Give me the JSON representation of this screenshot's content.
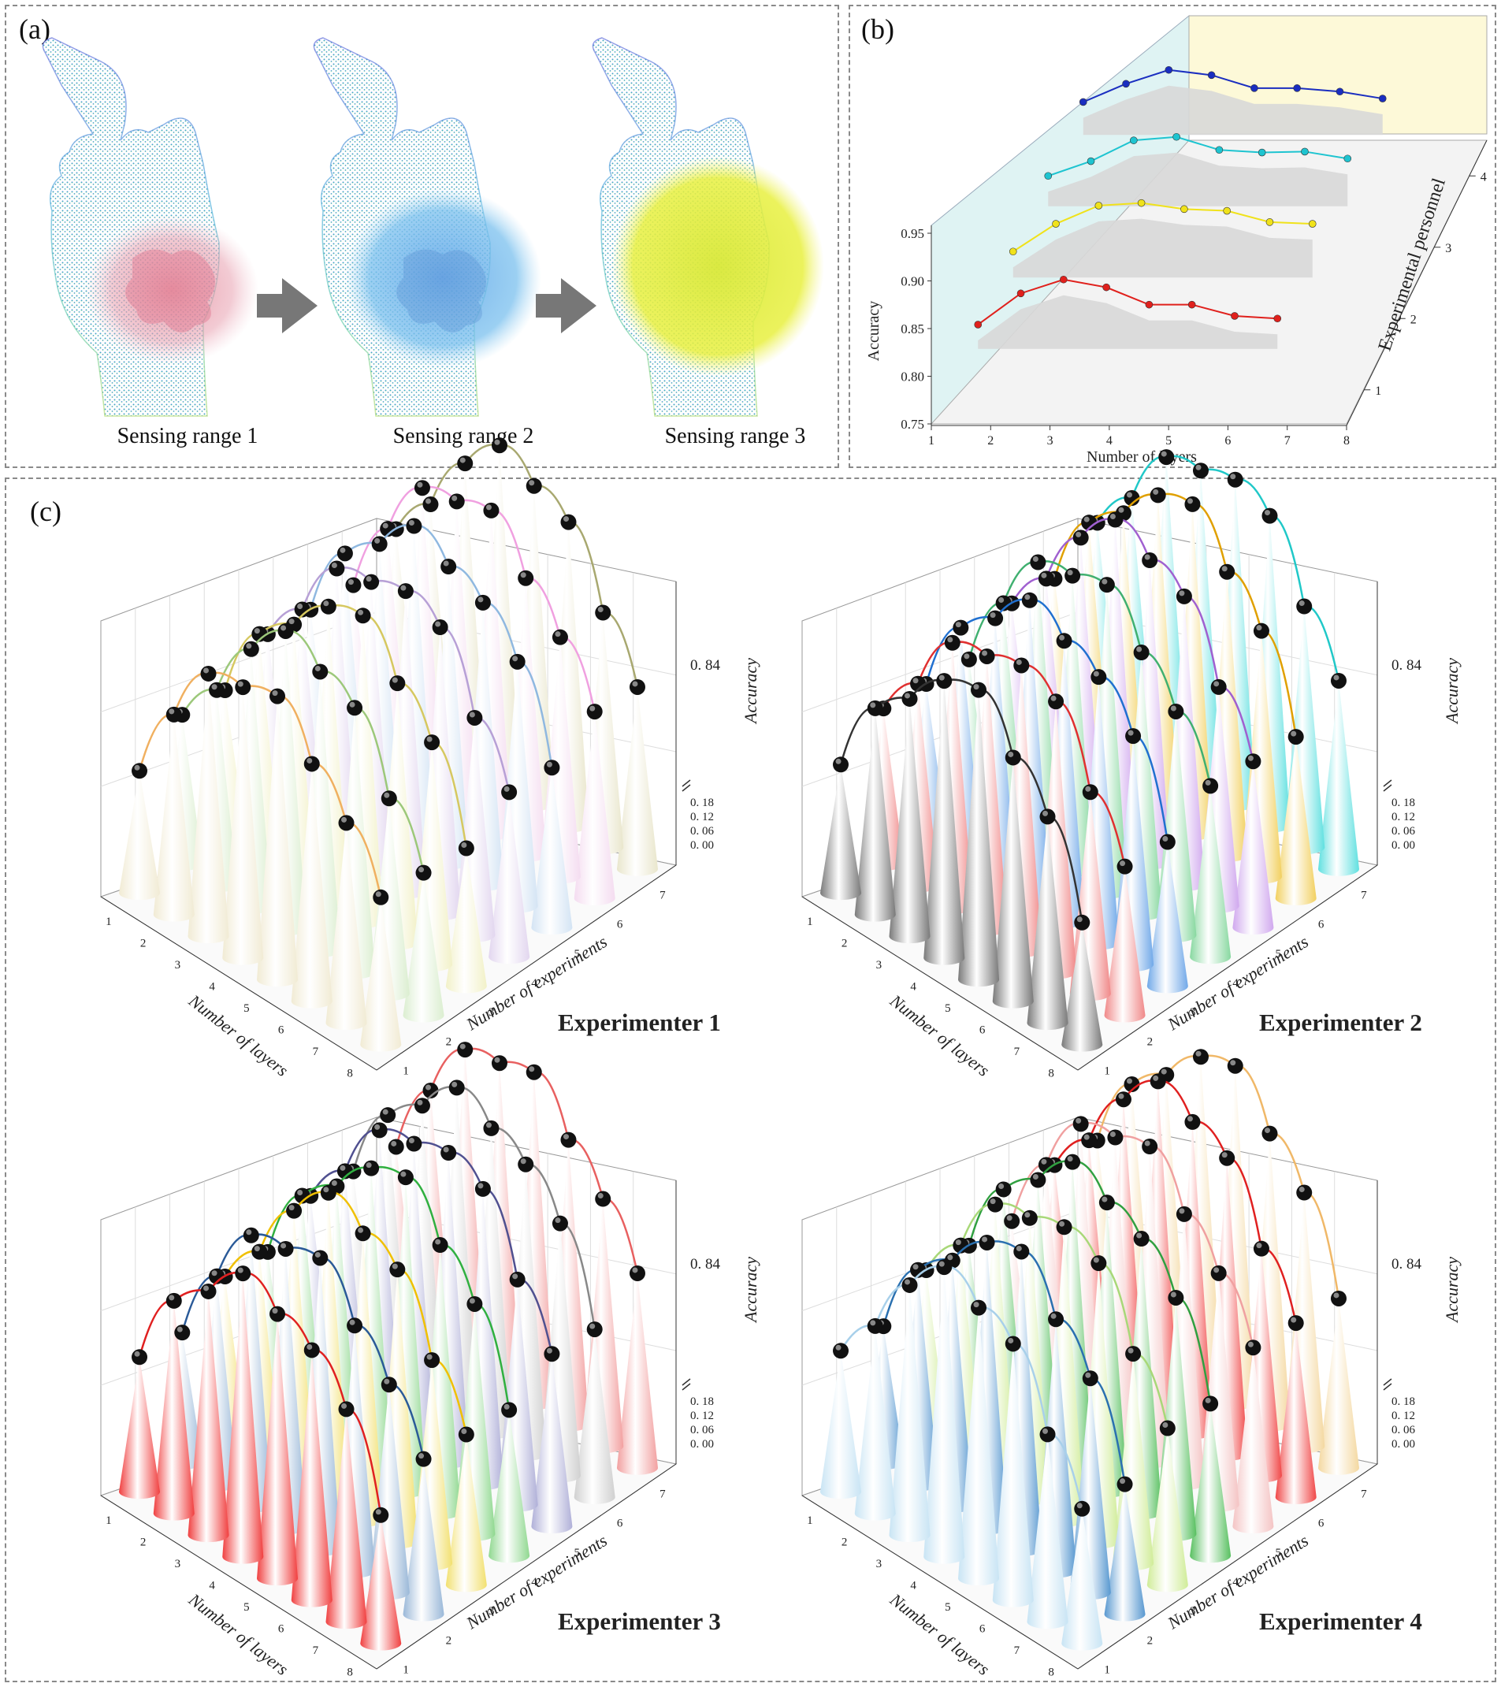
{
  "panel_a": {
    "label": "(a)",
    "captions": [
      "Sensing range 1",
      "Sensing range 2",
      "Sensing range 3"
    ],
    "sensing_colors": [
      "#e8909f",
      "#63b6e8",
      "#e9ef3f"
    ]
  },
  "panel_b": {
    "label": "(b)",
    "chart_data": {
      "type": "line",
      "xlabel": "Number of layers",
      "ylabel": "Accuracy",
      "zlabel": "Experimental personnel",
      "x_ticks": [
        "1",
        "2",
        "3",
        "4",
        "5",
        "6",
        "7",
        "8"
      ],
      "y_ticks": [
        "0.75",
        "0.80",
        "0.85",
        "0.90",
        "0.95"
      ],
      "z_ticks": [
        "1",
        "2",
        "3",
        "4"
      ],
      "ylim": [
        0.75,
        0.95
      ],
      "series": [
        {
          "personnel": 1,
          "color": "#e0201c",
          "x": [
            1,
            2,
            3,
            4,
            5,
            6,
            7,
            8
          ],
          "values": [
            0.848,
            0.884,
            0.9,
            0.891,
            0.871,
            0.871,
            0.858,
            0.855
          ]
        },
        {
          "personnel": 2,
          "color": "#f0e21a",
          "x": [
            1,
            2,
            3,
            4,
            5,
            6,
            7,
            8
          ],
          "values": [
            0.85,
            0.882,
            0.903,
            0.906,
            0.899,
            0.897,
            0.884,
            0.882
          ]
        },
        {
          "personnel": 3,
          "color": "#1ec4d0",
          "x": [
            1,
            2,
            3,
            4,
            5,
            6,
            7,
            8
          ],
          "values": [
            0.855,
            0.872,
            0.896,
            0.9,
            0.885,
            0.882,
            0.883,
            0.875
          ]
        },
        {
          "personnel": 4,
          "color": "#1a2ec0",
          "x": [
            1,
            2,
            3,
            4,
            5,
            6,
            7,
            8
          ],
          "values": [
            0.858,
            0.879,
            0.895,
            0.889,
            0.874,
            0.874,
            0.87,
            0.862
          ]
        }
      ]
    }
  },
  "panel_c": {
    "label": "(c)",
    "axis_ylabel": "Accuracy",
    "axis_layers": "Number of layers",
    "axis_experiments": "Number of experiments",
    "tick_084": "0. 84",
    "low_ticks": [
      "0. 18",
      "0. 12",
      "0. 06",
      "0. 00"
    ],
    "layer_ticks": [
      "1",
      "2",
      "3",
      "4",
      "5",
      "6",
      "7",
      "8"
    ],
    "experiment_ticks": [
      "1",
      "2",
      "3",
      "4",
      "5",
      "6",
      "7"
    ],
    "chart_data": [
      {
        "title": "Experimenter 1",
        "type": "line",
        "colors": [
          "#f0b060",
          "#9cc87a",
          "#d6c860",
          "#b7a0d6",
          "#8fb8e0",
          "#f0a0e0",
          "#a8a870"
        ],
        "cone_colors": [
          "#f1ebd4",
          "#dbeed0",
          "#f2f1c8",
          "#e2d6ef",
          "#d4e4f4",
          "#f4dcf0",
          "#e9e6cc"
        ]
      },
      {
        "title": "Experimenter 2",
        "type": "line",
        "colors": [
          "#333333",
          "#e03030",
          "#2070d0",
          "#40b070",
          "#a060d0",
          "#e0a000",
          "#20c8c8"
        ],
        "cone_colors": [
          "#7a7a7a",
          "#f08888",
          "#70a8e8",
          "#88d8a0",
          "#d0a8ee",
          "#f2d060",
          "#60e0e0"
        ]
      },
      {
        "title": "Experimenter 3",
        "type": "line",
        "colors": [
          "#e02020",
          "#2a5a98",
          "#f0c000",
          "#30b040",
          "#505090",
          "#888888",
          "#e86060"
        ],
        "cone_colors": [
          "#f04040",
          "#9ab8d8",
          "#f2e070",
          "#90d890",
          "#b0b0d8",
          "#d0d0d0",
          "#f2a0a0"
        ]
      },
      {
        "title": "Experimenter 4",
        "type": "line",
        "colors": [
          "#a8d0ea",
          "#2a70b0",
          "#a8d878",
          "#30a040",
          "#f0a0a0",
          "#e02020",
          "#f0b868"
        ],
        "cone_colors": [
          "#c8e4f4",
          "#5898d0",
          "#d0ec98",
          "#58c060",
          "#f4c4c4",
          "#f04848",
          "#f4d8a0"
        ]
      }
    ]
  }
}
